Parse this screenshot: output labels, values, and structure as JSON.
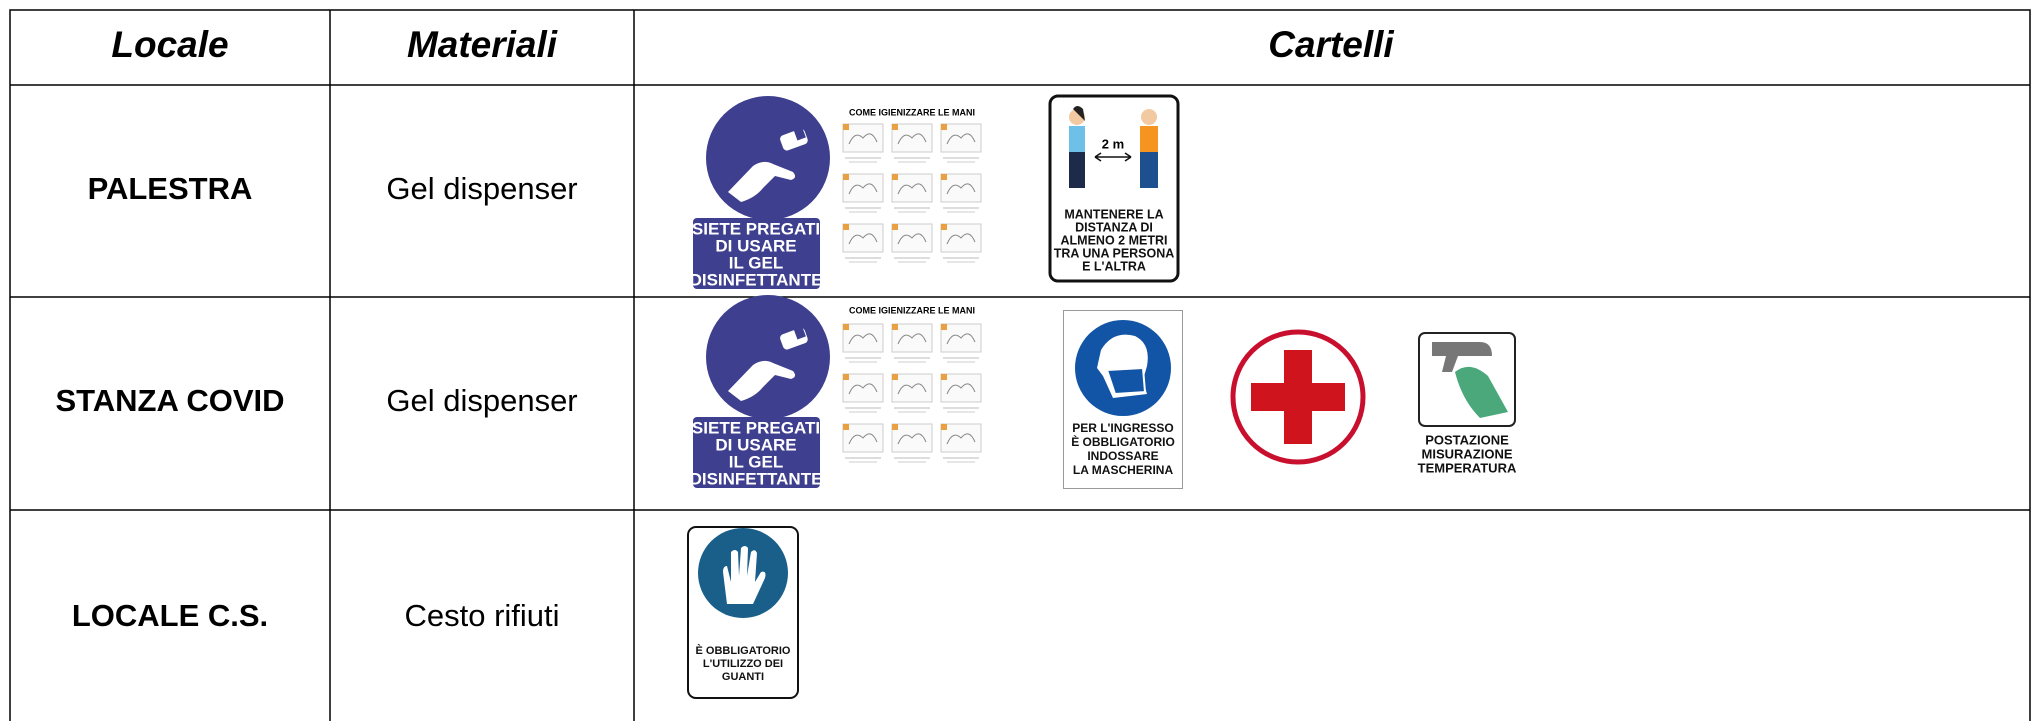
{
  "table": {
    "header": [
      "Locale",
      "Materiali",
      "Cartelli"
    ],
    "rows": [
      {
        "locale": "PALESTRA",
        "materiali": "Gel dispenser",
        "cartelli": [
          {
            "lines": [
              "SIETE PREGATI",
              "DI USARE",
              "IL GEL",
              "DISINFETTANTE"
            ]
          },
          {
            "title": "COME IGIENIZZARE LE MANI"
          },
          {
            "distance": "2 m",
            "lines": [
              "MANTENERE LA",
              "DISTANZA DI",
              "ALMENO 2 METRI",
              "TRA UNA PERSONA",
              "E L'ALTRA"
            ]
          }
        ]
      },
      {
        "locale": "STANZA COVID",
        "materiali": "Gel dispenser",
        "cartelli": [
          {
            "lines": [
              "SIETE PREGATI",
              "DI USARE",
              "IL GEL",
              "DISINFETTANTE"
            ]
          },
          {
            "title": "COME IGIENIZZARE LE MANI"
          },
          {
            "lines": [
              "PER L'INGRESSO",
              "È OBBLIGATORIO",
              "INDOSSARE",
              "LA MASCHERINA"
            ]
          },
          {
            "lines": [
              "POSTAZIONE",
              "MISURAZIONE",
              "TEMPERATURA"
            ]
          }
        ]
      },
      {
        "locale": "LOCALE C.S.",
        "materiali": "Cesto rifiuti",
        "cartelli": [
          {
            "lines": [
              "È OBBLIGATORIO",
              "L'UTILIZZO DEI",
              "GUANTI"
            ]
          }
        ]
      }
    ]
  }
}
